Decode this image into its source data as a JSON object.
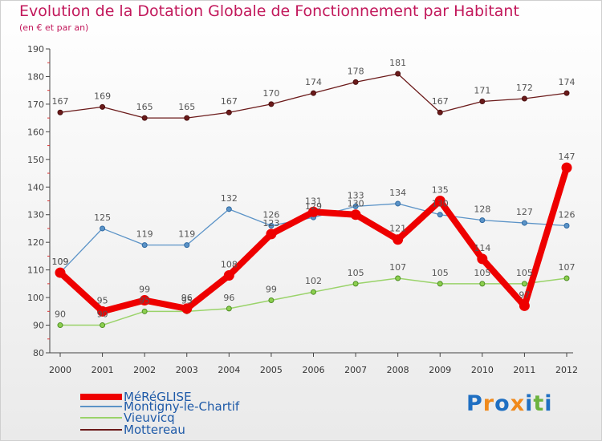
{
  "title": "Evolution de la Dotation Globale de Fonctionnement par Habitant",
  "subtitle": "(en € et par an)",
  "logo": {
    "letters": [
      {
        "ch": "P",
        "color": "#1f6fc2"
      },
      {
        "ch": "r",
        "color": "#f08a1c"
      },
      {
        "ch": "o",
        "color": "#1f6fc2"
      },
      {
        "ch": "x",
        "color": "#f08a1c"
      },
      {
        "ch": "i",
        "color": "#1f6fc2"
      },
      {
        "ch": "t",
        "color": "#6cb33f"
      },
      {
        "ch": "i",
        "color": "#1f6fc2"
      }
    ]
  },
  "chart_data": {
    "type": "line",
    "title": "Evolution de la Dotation Globale de Fonctionnement par Habitant",
    "xlabel": "",
    "ylabel": "",
    "categories": [
      "2000",
      "2001",
      "2002",
      "2003",
      "2004",
      "2005",
      "2006",
      "2007",
      "2008",
      "2009",
      "2010",
      "2011",
      "2012"
    ],
    "ylim": [
      80,
      190
    ],
    "yticks": [
      80,
      90,
      100,
      110,
      120,
      130,
      140,
      150,
      160,
      170,
      180,
      190
    ],
    "grid": false,
    "legend_position": "bottom-left",
    "series": [
      {
        "name": "Mottereau",
        "color": "#6b1a1a",
        "values": [
          167,
          169,
          165,
          165,
          167,
          170,
          174,
          178,
          181,
          167,
          171,
          172,
          174
        ]
      },
      {
        "name": "Vieuvicq",
        "color": "#9ad36a",
        "values": [
          90,
          90,
          95,
          95,
          96,
          99,
          102,
          105,
          107,
          105,
          105,
          105,
          107
        ]
      },
      {
        "name": "Montigny-le-Chartif",
        "color": "#5b93c7",
        "values": [
          109,
          125,
          119,
          119,
          132,
          126,
          129,
          133,
          134,
          130,
          128,
          127,
          126
        ]
      },
      {
        "name": "MéRéGLISE",
        "color": "#ee0000",
        "values": [
          109,
          95,
          99,
          96,
          108,
          123,
          131,
          130,
          121,
          135,
          114,
          97,
          147
        ]
      }
    ],
    "legend_order": [
      "MéRéGLISE",
      "Montigny-le-Chartif",
      "Vieuvicq",
      "Mottereau"
    ]
  }
}
